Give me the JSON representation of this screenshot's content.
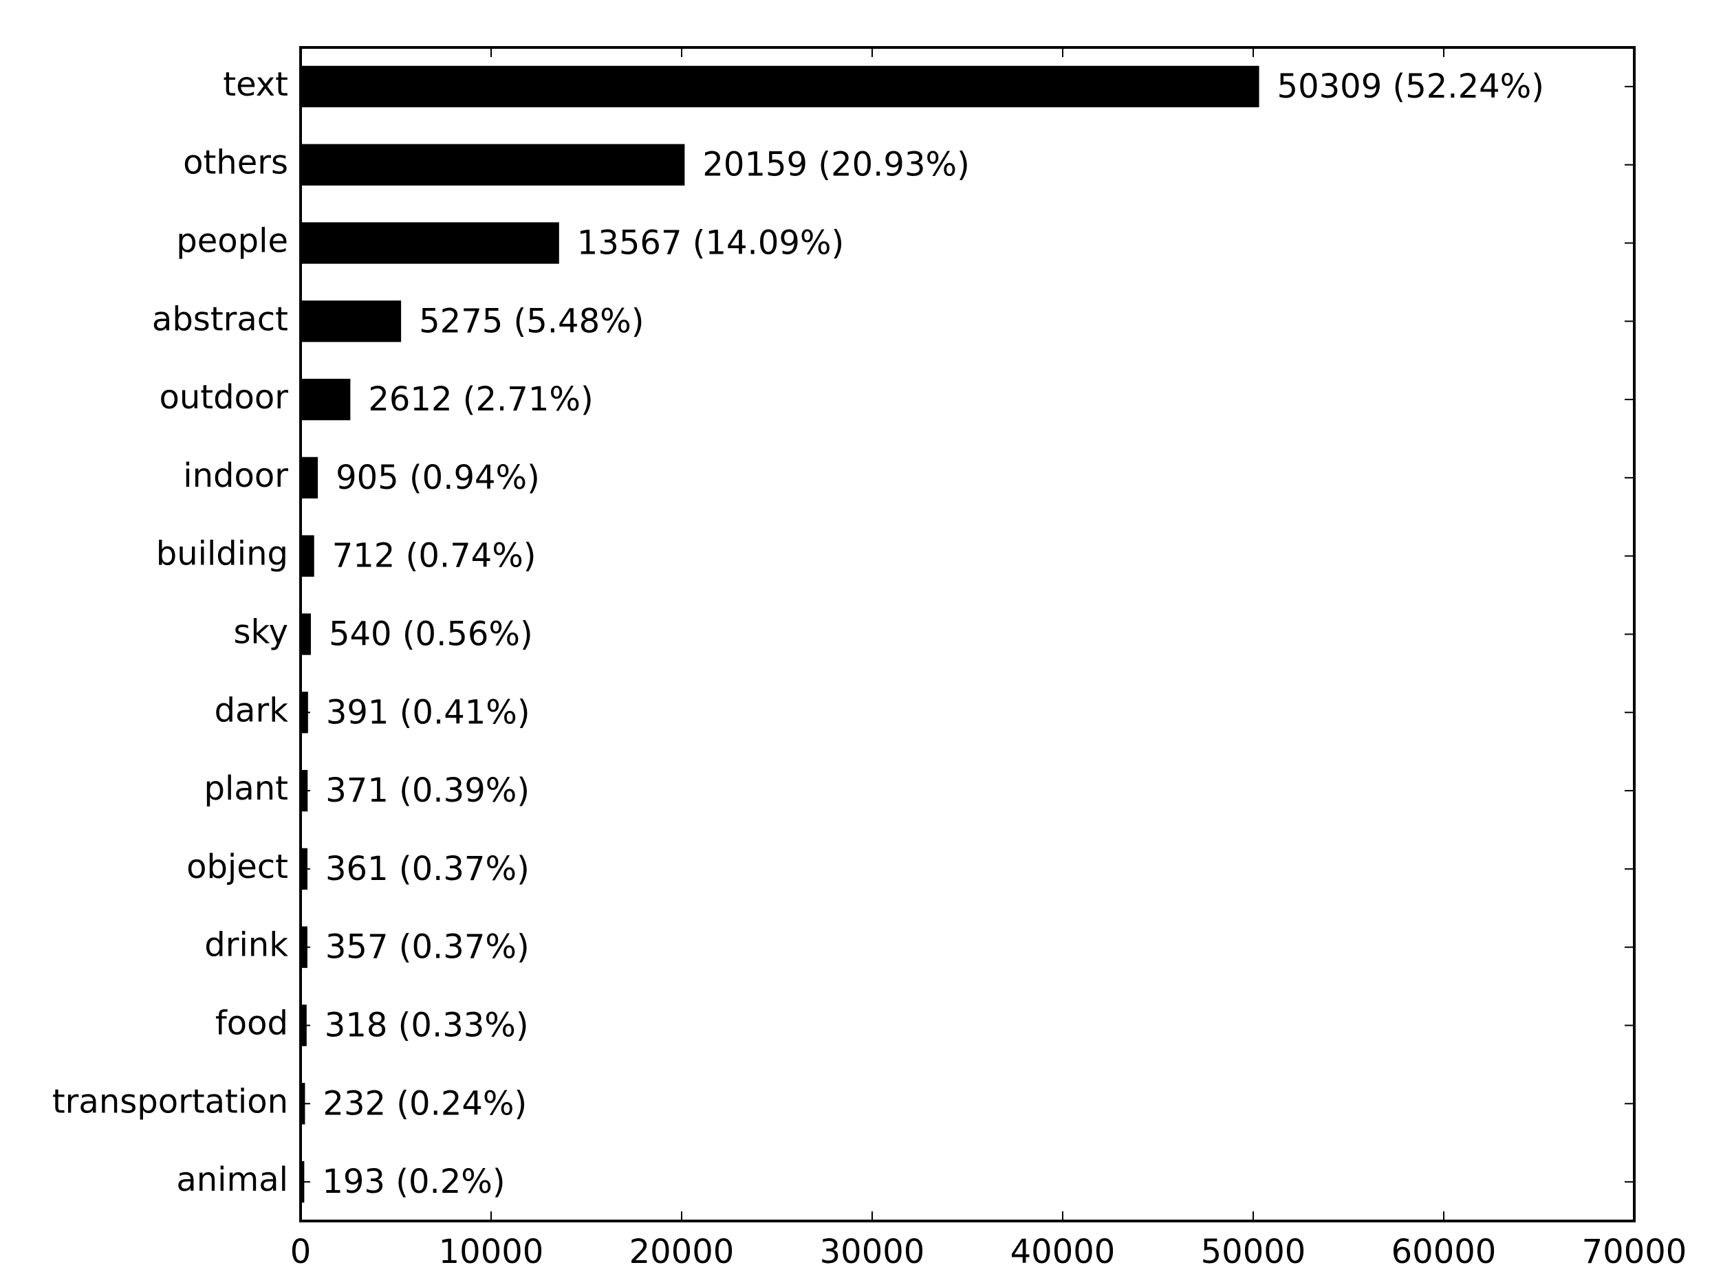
{
  "chart_data": {
    "type": "barh",
    "categories": [
      "text",
      "others",
      "people",
      "abstract",
      "outdoor",
      "indoor",
      "building",
      "sky",
      "dark",
      "plant",
      "object",
      "drink",
      "food",
      "transportation",
      "animal"
    ],
    "values": [
      50309,
      20159,
      13567,
      5275,
      2612,
      905,
      712,
      540,
      391,
      371,
      361,
      357,
      318,
      232,
      193
    ],
    "value_labels": [
      "50309 (52.24%)",
      "20159 (20.93%)",
      "13567 (14.09%)",
      "5275 (5.48%)",
      "2612 (2.71%)",
      "905 (0.94%)",
      "712 (0.74%)",
      "540 (0.56%)",
      "391 (0.41%)",
      "371 (0.39%)",
      "361 (0.37%)",
      "357 (0.37%)",
      "318 (0.33%)",
      "232 (0.24%)",
      "193 (0.2%)"
    ],
    "color": "#000000",
    "xlim": [
      0,
      70000
    ],
    "xticks": [
      0,
      10000,
      20000,
      30000,
      40000,
      50000,
      60000,
      70000
    ],
    "grid": false
  }
}
